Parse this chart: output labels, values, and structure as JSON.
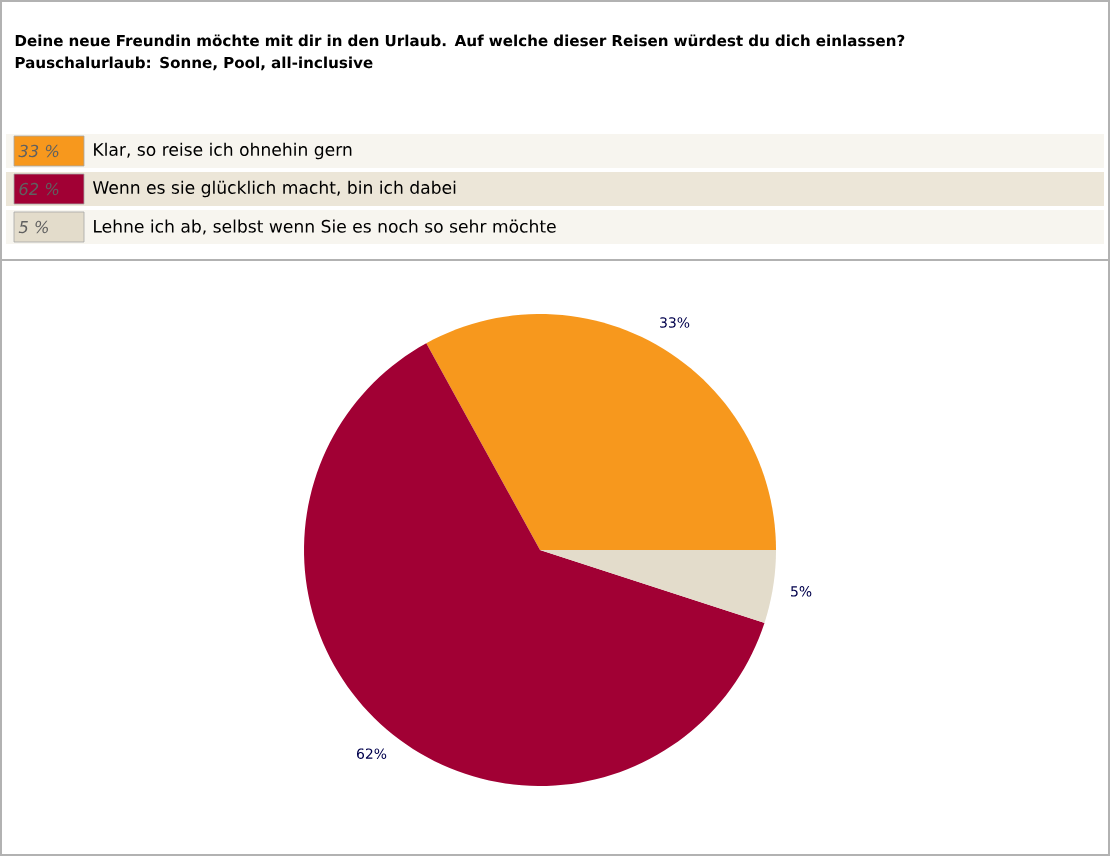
{
  "chart_data": {
    "type": "pie",
    "title": "Deine neue Freundin möchte mit dir in den Urlaub. Auf welche dieser Reisen würdest du dich einlassen? Pauschalurlaub: Sonne, Pool, all-inclusive",
    "categories": [
      "Klar, so reise ich ohnehin gern",
      "Wenn es sie glücklich macht, bin ich dabei",
      "Lehne ich ab, selbst wenn Sie es noch so sehr möchte"
    ],
    "values": [
      33,
      62,
      5
    ],
    "colors": [
      "#f7981d",
      "#a10034",
      "#e3dccb"
    ],
    "value_labels": [
      "33%",
      "62%",
      "5%"
    ],
    "annotations": [
      "33 %",
      "62 %",
      "5 %"
    ],
    "legend": "top"
  }
}
